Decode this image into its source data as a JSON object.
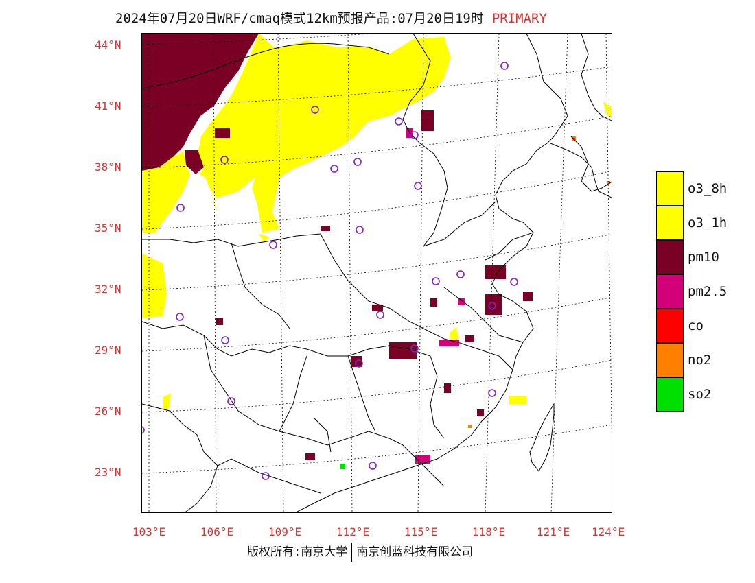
{
  "title": {
    "main": "2024年07月20日WRF/cmaq模式12km预报产品:07月20日19时",
    "tag": "PRIMARY"
  },
  "axes": {
    "lat_labels": [
      "44°N",
      "41°N",
      "38°N",
      "35°N",
      "32°N",
      "29°N",
      "26°N",
      "23°N"
    ],
    "lon_labels": [
      "103°E",
      "106°E",
      "109°E",
      "112°E",
      "115°E",
      "118°E",
      "121°E",
      "124°E"
    ]
  },
  "legend": {
    "items": [
      {
        "label": "o3_8h",
        "color": "#ffff00"
      },
      {
        "label": "o3_1h",
        "color": "#ffff00"
      },
      {
        "label": "pm10",
        "color": "#7a0026"
      },
      {
        "label": "pm2.5",
        "color": "#d4007a"
      },
      {
        "label": "co",
        "color": "#ff0000"
      },
      {
        "label": "no2",
        "color": "#ff8000"
      },
      {
        "label": "so2",
        "color": "#00e000"
      }
    ]
  },
  "footer": {
    "left": "版权所有:南京大学",
    "right": "南京创蓝科技有限公司"
  },
  "colors": {
    "accent_text": "#e03030",
    "station_circle": "#7f1fd1"
  }
}
